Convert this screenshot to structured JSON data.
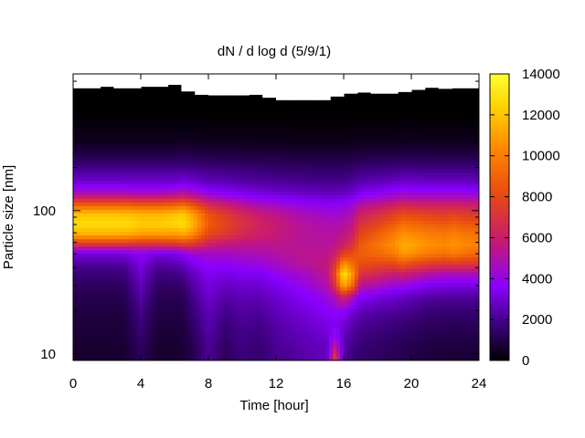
{
  "chart_data": {
    "type": "heatmap",
    "title": "dN / d log d (5/9/1)",
    "xlabel": "Time [hour]",
    "ylabel": "Particle size [nm]",
    "xlim": [
      0,
      24
    ],
    "x_ticks": [
      0,
      4,
      8,
      12,
      16,
      20,
      24
    ],
    "y_scale": "log",
    "ylim_nm": [
      9,
      900
    ],
    "y_tick_labels": [
      "10",
      "100"
    ],
    "colorbar": {
      "range": [
        0,
        14000
      ],
      "ticks": [
        0,
        2000,
        4000,
        6000,
        8000,
        10000,
        12000,
        14000
      ],
      "colormap": [
        "#000000",
        "#3a0078",
        "#8a00ff",
        "#c81a70",
        "#e84a10",
        "#ff8800",
        "#ffd000",
        "#ffff30"
      ]
    },
    "no_data_color": "#000000",
    "size_bins_nm": [
      9.5,
      11,
      13,
      16,
      20,
      25,
      30,
      36,
      42,
      50,
      58,
      68,
      80,
      95,
      110,
      130,
      155,
      185,
      220,
      260,
      300,
      360,
      420,
      500
    ],
    "time_hours": [
      0,
      1,
      2,
      3,
      4,
      5,
      6,
      6.5,
      7,
      8,
      9,
      10,
      11,
      12,
      13,
      14,
      15,
      15.5,
      16,
      16.5,
      17,
      18,
      19,
      19.5,
      20,
      21,
      22,
      22.5,
      23,
      24
    ],
    "upper_cutoff_nm": [
      605,
      605,
      620,
      605,
      605,
      620,
      620,
      640,
      575,
      545,
      540,
      540,
      540,
      545,
      520,
      500,
      500,
      500,
      500,
      530,
      555,
      565,
      555,
      555,
      570,
      590,
      610,
      600,
      605,
      605
    ],
    "z": [
      [
        800,
        800,
        800,
        800,
        1500,
        800,
        800,
        900,
        1200,
        2500,
        1500,
        2000,
        1800,
        2300,
        2500,
        2800,
        3000,
        7500,
        2600,
        2000,
        1800,
        1600,
        1400,
        1300,
        1200,
        1000,
        900,
        900,
        900,
        900
      ],
      [
        800,
        800,
        800,
        800,
        1600,
        800,
        800,
        900,
        1200,
        2500,
        1600,
        2100,
        1900,
        2400,
        2600,
        2900,
        3100,
        6000,
        2800,
        2200,
        1900,
        1700,
        1500,
        1400,
        1300,
        1100,
        1000,
        1000,
        1000,
        1000
      ],
      [
        900,
        900,
        900,
        900,
        1800,
        900,
        900,
        1000,
        1400,
        2600,
        1800,
        2200,
        2000,
        2500,
        2800,
        3000,
        3300,
        4500,
        3000,
        2400,
        2100,
        1900,
        1700,
        1600,
        1500,
        1300,
        1200,
        1200,
        1200,
        1200
      ],
      [
        1000,
        1000,
        1000,
        1000,
        2000,
        1000,
        1000,
        1100,
        1600,
        2800,
        2000,
        2400,
        2200,
        2700,
        3000,
        3300,
        3600,
        3800,
        3400,
        2800,
        2400,
        2200,
        2000,
        1900,
        1800,
        1600,
        1500,
        1500,
        1500,
        1500
      ],
      [
        1100,
        1100,
        1100,
        1100,
        2300,
        1200,
        1200,
        1300,
        1900,
        3000,
        2300,
        2600,
        2500,
        3000,
        3300,
        3600,
        4000,
        4200,
        4200,
        3500,
        3000,
        2700,
        2500,
        2400,
        2300,
        2000,
        1900,
        1900,
        1900,
        1900
      ],
      [
        1300,
        1300,
        1300,
        1300,
        2700,
        1400,
        1400,
        1500,
        2200,
        3300,
        2700,
        2900,
        2900,
        3300,
        3700,
        4000,
        4500,
        5200,
        6500,
        5200,
        4000,
        3600,
        3300,
        3200,
        3000,
        2700,
        2600,
        2600,
        2600,
        2600
      ],
      [
        1600,
        1600,
        1600,
        1600,
        3000,
        1700,
        1700,
        1800,
        2600,
        3500,
        3100,
        3300,
        3300,
        3700,
        4100,
        4500,
        5200,
        7000,
        11000,
        9000,
        5500,
        5000,
        4500,
        4400,
        4200,
        3800,
        3600,
        3600,
        3600,
        3600
      ],
      [
        2000,
        2000,
        2000,
        2000,
        3300,
        2100,
        2200,
        2400,
        3000,
        3800,
        3600,
        3800,
        3800,
        4200,
        4600,
        5000,
        5600,
        8000,
        12800,
        10500,
        7000,
        6500,
        6000,
        6200,
        5800,
        5300,
        5000,
        5000,
        5000,
        5000
      ],
      [
        2500,
        2500,
        2500,
        2500,
        3600,
        2600,
        2800,
        3000,
        3600,
        4200,
        4100,
        4300,
        4400,
        4800,
        5200,
        5500,
        5800,
        7200,
        10500,
        9200,
        8000,
        7800,
        7700,
        8300,
        7800,
        7300,
        7000,
        7200,
        7000,
        7000
      ],
      [
        3500,
        3500,
        3500,
        3500,
        4000,
        3500,
        3700,
        4000,
        4500,
        4800,
        4800,
        5000,
        5100,
        5300,
        5500,
        5600,
        5600,
        6200,
        7500,
        8000,
        8700,
        9000,
        9600,
        10500,
        10200,
        9600,
        9300,
        9700,
        9300,
        9000
      ],
      [
        7000,
        7000,
        7000,
        7000,
        6800,
        6800,
        7000,
        7300,
        7200,
        6200,
        5800,
        5600,
        5600,
        5600,
        5500,
        5400,
        5400,
        5600,
        6200,
        7000,
        8500,
        9300,
        10200,
        11000,
        10800,
        10300,
        10000,
        10300,
        10000,
        9800
      ],
      [
        11000,
        11000,
        11000,
        11000,
        10500,
        10500,
        10500,
        10800,
        10200,
        7800,
        7200,
        6600,
        6200,
        5900,
        5600,
        5400,
        5300,
        5400,
        5600,
        6200,
        7800,
        8700,
        9600,
        10300,
        10100,
        9700,
        9500,
        9800,
        9500,
        9300
      ],
      [
        12500,
        12500,
        12500,
        12500,
        12000,
        12000,
        12200,
        12500,
        11500,
        8600,
        7800,
        7000,
        6400,
        6000,
        5600,
        5300,
        5100,
        5100,
        5300,
        5800,
        7000,
        7800,
        8600,
        9200,
        9000,
        8700,
        8500,
        8800,
        8500,
        8300
      ],
      [
        11500,
        11500,
        11500,
        11500,
        11200,
        11200,
        11500,
        11800,
        10800,
        8200,
        7300,
        6500,
        6000,
        5600,
        5200,
        4900,
        4700,
        4700,
        4800,
        5200,
        6200,
        6800,
        7500,
        7900,
        7800,
        7600,
        7400,
        7600,
        7400,
        7200
      ],
      [
        8500,
        8500,
        8500,
        8500,
        8300,
        8300,
        8600,
        9000,
        8200,
        6600,
        6000,
        5400,
        5000,
        4700,
        4400,
        4200,
        4100,
        4100,
        4200,
        4500,
        5200,
        5700,
        6100,
        6400,
        6300,
        6200,
        6100,
        6200,
        6100,
        6000
      ],
      [
        5200,
        5200,
        5200,
        5200,
        5100,
        5100,
        5300,
        5600,
        5200,
        4500,
        4200,
        3900,
        3600,
        3500,
        3300,
        3200,
        3100,
        3100,
        3200,
        3400,
        3900,
        4200,
        4500,
        4700,
        4600,
        4600,
        4500,
        4600,
        4500,
        4400
      ],
      [
        3500,
        3500,
        3500,
        3500,
        3400,
        3400,
        3500,
        3700,
        3500,
        3100,
        3000,
        2800,
        2700,
        2600,
        2500,
        2400,
        2400,
        2400,
        2400,
        2600,
        2900,
        3100,
        3300,
        3400,
        3400,
        3300,
        3300,
        3300,
        3300,
        3200
      ],
      [
        2600,
        2600,
        2600,
        2600,
        2600,
        2600,
        2600,
        2700,
        2600,
        2400,
        2300,
        2200,
        2100,
        2000,
        2000,
        1900,
        1900,
        1900,
        1900,
        2000,
        2200,
        2300,
        2400,
        2500,
        2500,
        2400,
        2400,
        2400,
        2400,
        2400
      ],
      [
        1700,
        1700,
        1700,
        1700,
        1700,
        1700,
        1700,
        1800,
        1700,
        1600,
        1500,
        1500,
        1400,
        1400,
        1300,
        1300,
        1300,
        1300,
        1300,
        1400,
        1500,
        1600,
        1600,
        1700,
        1700,
        1600,
        1600,
        1600,
        1600,
        1600
      ],
      [
        1000,
        1000,
        1000,
        1000,
        1000,
        1000,
        1000,
        1100,
        1000,
        950,
        900,
        900,
        850,
        850,
        800,
        800,
        800,
        800,
        800,
        850,
        900,
        950,
        950,
        1000,
        1000,
        950,
        950,
        950,
        950,
        950
      ],
      [
        550,
        550,
        550,
        550,
        550,
        550,
        550,
        600,
        550,
        520,
        500,
        500,
        480,
        480,
        450,
        450,
        450,
        450,
        450,
        480,
        500,
        520,
        520,
        550,
        550,
        520,
        520,
        520,
        520,
        520
      ],
      [
        300,
        300,
        300,
        300,
        300,
        300,
        300,
        320,
        300,
        280,
        270,
        270,
        260,
        260,
        250,
        250,
        250,
        250,
        250,
        260,
        270,
        280,
        280,
        300,
        300,
        280,
        280,
        280,
        280,
        280
      ],
      [
        120,
        120,
        120,
        120,
        120,
        120,
        120,
        130,
        120,
        110,
        100,
        100,
        100,
        100,
        100,
        100,
        100,
        100,
        100,
        100,
        100,
        110,
        110,
        120,
        120,
        110,
        110,
        110,
        110,
        110
      ],
      [
        50,
        50,
        50,
        50,
        50,
        50,
        50,
        50,
        50,
        50,
        50,
        50,
        50,
        50,
        50,
        50,
        50,
        50,
        50,
        50,
        50,
        50,
        50,
        50,
        50,
        50,
        50,
        50,
        50,
        50
      ]
    ]
  }
}
